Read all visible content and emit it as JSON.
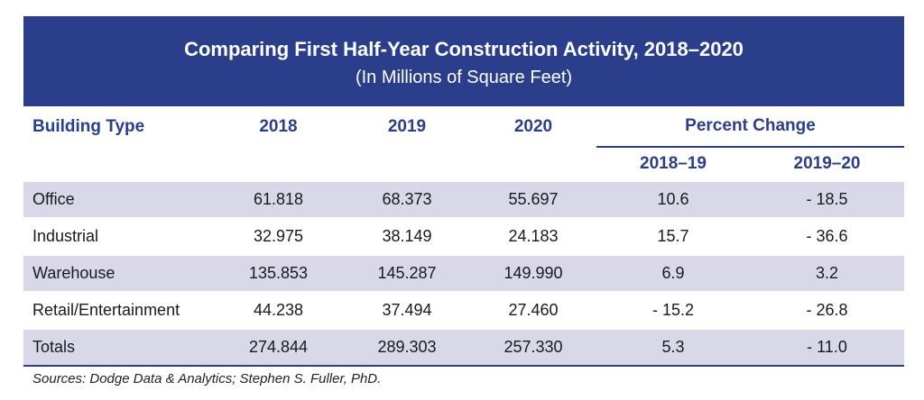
{
  "title": "Comparing First Half-Year Construction Activity, 2018–2020",
  "subtitle": "(In Millions of Square Feet)",
  "columns": {
    "building_type": "Building Type",
    "y2018": "2018",
    "y2019": "2019",
    "y2020": "2020",
    "percent_change": "Percent Change",
    "pc1": "2018–19",
    "pc2": "2019–20"
  },
  "rows": [
    {
      "type": "Office",
      "y2018": "61.818",
      "y2019": "68.373",
      "y2020": "55.697",
      "pc1": "10.6",
      "pc2": "- 18.5"
    },
    {
      "type": "Industrial",
      "y2018": "32.975",
      "y2019": "38.149",
      "y2020": "24.183",
      "pc1": "15.7",
      "pc2": "- 36.6"
    },
    {
      "type": "Warehouse",
      "y2018": "135.853",
      "y2019": "145.287",
      "y2020": "149.990",
      "pc1": "6.9",
      "pc2": "3.2"
    },
    {
      "type": "Retail/Entertainment",
      "y2018": "44.238",
      "y2019": "37.494",
      "y2020": "27.460",
      "pc1": "- 15.2",
      "pc2": "- 26.8"
    },
    {
      "type": "Totals",
      "y2018": "274.844",
      "y2019": "289.303",
      "y2020": "257.330",
      "pc1": "5.3",
      "pc2": "- 11.0"
    }
  ],
  "source": "Sources: Dodge Data & Analytics; Stephen S. Fuller, PhD.",
  "colors": {
    "banner": "#2b3e8c",
    "header_text": "#2b3e8c",
    "shaded_row": "#d8d8e8"
  }
}
